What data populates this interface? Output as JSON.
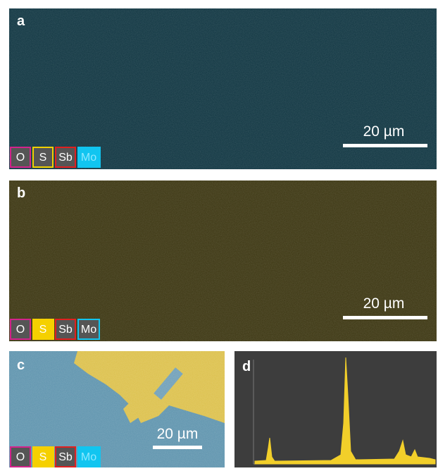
{
  "panels": [
    {
      "label": "a",
      "scale_bar": "20 µm",
      "legend": [
        "O",
        "S",
        "Sb",
        "Mo"
      ]
    },
    {
      "label": "b",
      "scale_bar": "20 µm",
      "legend": [
        "O",
        "S",
        "Sb",
        "Mo"
      ]
    },
    {
      "label": "c",
      "scale_bar": "20 µm",
      "legend": [
        "O",
        "S",
        "Sb",
        "Mo"
      ]
    },
    {
      "label": "d"
    }
  ]
}
